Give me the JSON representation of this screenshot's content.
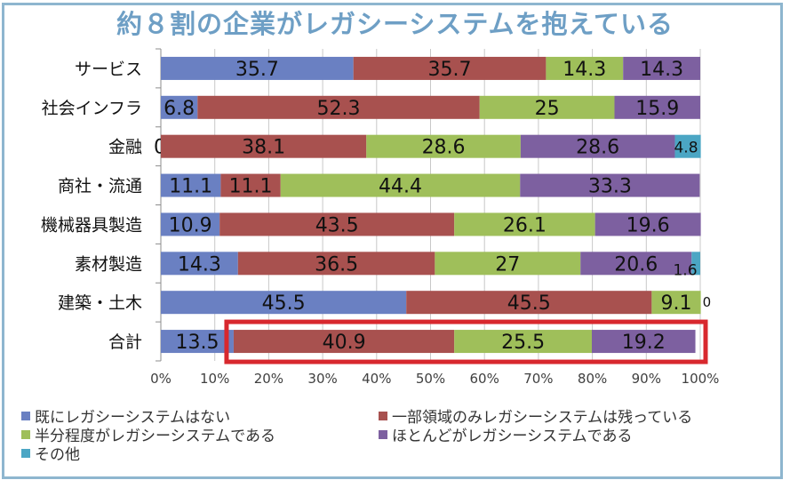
{
  "title": "約８割の企業がレガシーシステムを抱えている",
  "colors": {
    "series": [
      "#6a80c2",
      "#a8514f",
      "#9fbf5a",
      "#7d60a0",
      "#4ba6c4"
    ],
    "highlight": "#d8282e",
    "grid": "#c8c8c8",
    "frame": "#8eb6cf",
    "title": "#6e9fc5"
  },
  "chart_data": {
    "type": "bar",
    "orientation": "horizontal",
    "stacked": true,
    "categories": [
      "サービス",
      "社会インフラ",
      "金融",
      "商社・流通",
      "機械器具製造",
      "素材製造",
      "建築・土木",
      "合計"
    ],
    "series": [
      {
        "name": "既にレガシーシステムはない",
        "values": [
          35.7,
          6.8,
          0,
          11.1,
          10.9,
          14.3,
          45.5,
          13.5
        ]
      },
      {
        "name": "一部領域のみレガシーシステムは残っている",
        "values": [
          35.7,
          52.3,
          38.1,
          11.1,
          43.5,
          36.5,
          45.5,
          40.9
        ]
      },
      {
        "name": "半分程度がレガシーシステムである",
        "values": [
          14.3,
          25,
          28.6,
          44.4,
          26.1,
          27,
          9.1,
          25.5
        ]
      },
      {
        "name": "ほとんどがレガシーシステムである",
        "values": [
          14.3,
          15.9,
          28.6,
          33.3,
          19.6,
          20.6,
          0,
          19.2
        ]
      },
      {
        "name": "その他",
        "values": [
          null,
          null,
          4.8,
          null,
          null,
          1.6,
          null,
          null
        ]
      }
    ],
    "value_labels": [
      [
        "35.7",
        "35.7",
        "14.3",
        "14.3",
        null
      ],
      [
        "6.8",
        "52.3",
        "25",
        "15.9",
        null
      ],
      [
        "0",
        "38.1",
        "28.6",
        "28.6",
        "4.8"
      ],
      [
        "11.1",
        "11.1",
        "44.4",
        "33.3",
        null
      ],
      [
        "10.9",
        "43.5",
        "26.1",
        "19.6",
        null
      ],
      [
        "14.3",
        "36.5",
        "27",
        "20.6",
        "1.6"
      ],
      [
        "45.5",
        "45.5",
        "9.1",
        "0",
        null
      ],
      [
        "13.5",
        "40.9",
        "25.5",
        "19.2",
        null
      ]
    ],
    "xlim": [
      0,
      100
    ],
    "xticks": [
      "0%",
      "10%",
      "20%",
      "30%",
      "40%",
      "50%",
      "60%",
      "70%",
      "80%",
      "90%",
      "100%"
    ],
    "grid": true,
    "legend_position": "bottom",
    "highlight_category": "合計"
  }
}
